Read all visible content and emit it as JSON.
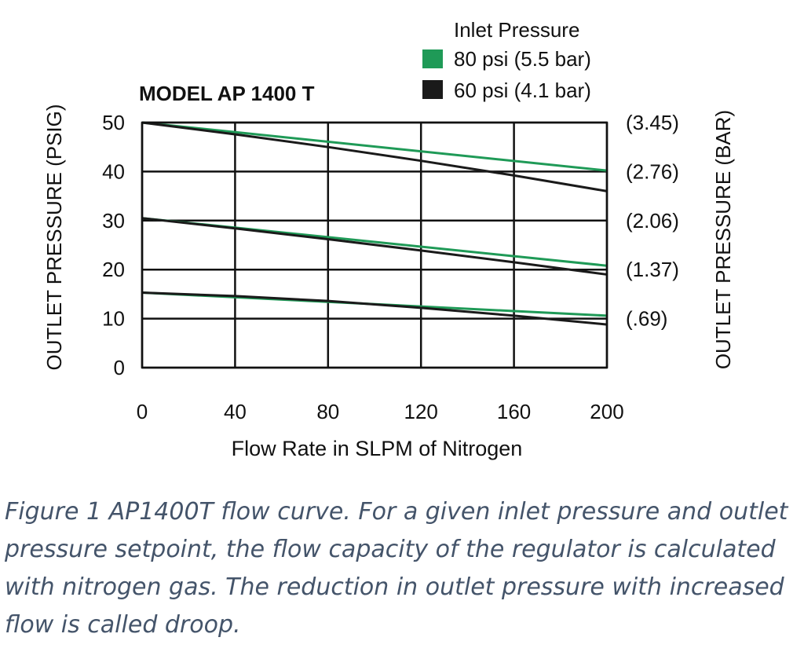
{
  "chart_data": {
    "type": "line",
    "title": "MODEL AP 1400 T",
    "xlabel": "Flow Rate in SLPM of Nitrogen",
    "ylabel": "OUTLET PRESSURE (PSIG)",
    "y2label": "OUTLET PRESSURE (BAR)",
    "xlim": [
      0,
      200
    ],
    "ylim": [
      0,
      50
    ],
    "x_ticks": [
      "0",
      "40",
      "80",
      "120",
      "160",
      "200"
    ],
    "x_tick_values": [
      0,
      40,
      80,
      120,
      160,
      200
    ],
    "y_ticks": [
      "0",
      "10",
      "20",
      "30",
      "40",
      "50"
    ],
    "y_tick_values": [
      0,
      10,
      20,
      30,
      40,
      50
    ],
    "y2_ticks": [
      "(3.45)",
      "(2.76)",
      "(2.06)",
      "(1.37)",
      "(.69)"
    ],
    "y2_tick_values": [
      50,
      40,
      30,
      20,
      10
    ],
    "grid": true,
    "legend_title": "Inlet Pressure",
    "legend_position": "top-right",
    "series": [
      {
        "name": "80 psi (5.5 bar)",
        "color": "#1f9a57",
        "lines": [
          {
            "x": [
              0,
              200
            ],
            "y": [
              50,
              40.2
            ]
          },
          {
            "x": [
              0,
              200
            ],
            "y": [
              30.5,
              20.8
            ]
          },
          {
            "x": [
              0,
              200
            ],
            "y": [
              15.3,
              10.6
            ]
          }
        ]
      },
      {
        "name": "60 psi (4.1 bar)",
        "color": "#1a1a1a",
        "lines": [
          {
            "x": [
              0,
              40,
              80,
              120,
              160,
              200
            ],
            "y": [
              50,
              47.6,
              45,
              42.2,
              39.2,
              36
            ]
          },
          {
            "x": [
              0,
              40,
              80,
              120,
              160,
              200
            ],
            "y": [
              30.5,
              28.4,
              26.2,
              23.9,
              21.5,
              19
            ]
          },
          {
            "x": [
              0,
              40,
              80,
              120,
              160,
              200
            ],
            "y": [
              15.3,
              14.6,
              13.6,
              12.2,
              10.6,
              8.8
            ]
          }
        ]
      }
    ]
  },
  "caption": "Figure 1 AP1400T flow curve.  For a given inlet pressure and outlet pressure setpoint, the flow capacity of the regulator is calculated with nitrogen gas. The reduction in outlet pressure with increased flow is called droop."
}
